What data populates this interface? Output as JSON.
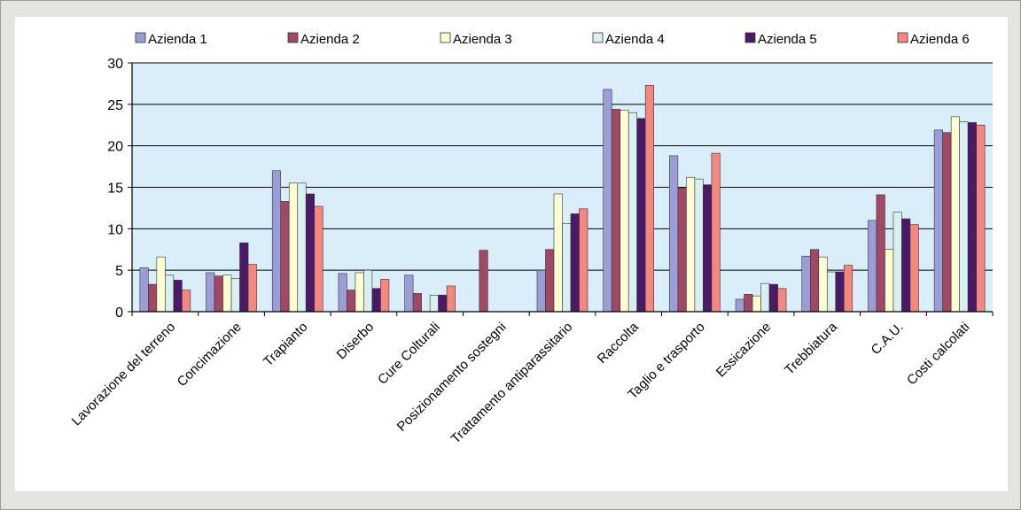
{
  "chart_data": {
    "type": "bar",
    "categories": [
      "Lavorazione del terreno",
      "Concimazione",
      "Trapianto",
      "Diserbo",
      "Cure Colturali",
      "Posizionamento sostegni",
      "Trattamento antiparassitario",
      "Raccolta",
      "Taglio e trasporto",
      "Essicazione",
      "Trebbiatura",
      "C.A.U.",
      "Costi calcolati"
    ],
    "series": [
      {
        "name": "Azienda 1",
        "color": "#9b9ed6",
        "values": [
          5.3,
          4.7,
          17.0,
          4.6,
          4.4,
          0,
          5.0,
          26.8,
          18.8,
          1.5,
          6.7,
          11.0,
          21.9
        ]
      },
      {
        "name": "Azienda 2",
        "color": "#a14866",
        "values": [
          3.3,
          4.3,
          13.3,
          2.6,
          2.2,
          7.4,
          7.5,
          24.4,
          14.9,
          2.1,
          7.5,
          14.1,
          21.6
        ]
      },
      {
        "name": "Azienda 3",
        "color": "#fefed3",
        "values": [
          6.6,
          4.4,
          15.5,
          4.7,
          0,
          0,
          14.2,
          24.3,
          16.2,
          1.9,
          6.6,
          7.5,
          23.5
        ]
      },
      {
        "name": "Azienda 4",
        "color": "#d8f0f0",
        "values": [
          4.4,
          4.0,
          15.5,
          5.0,
          2.0,
          0,
          10.6,
          24.0,
          16.0,
          3.4,
          4.8,
          12.0,
          22.9
        ]
      },
      {
        "name": "Azienda 5",
        "color": "#4a1a66",
        "values": [
          3.8,
          8.3,
          14.2,
          2.8,
          2.0,
          0,
          11.8,
          23.3,
          15.3,
          3.3,
          4.8,
          11.2,
          22.8
        ]
      },
      {
        "name": "Azienda 6",
        "color": "#f4877f",
        "values": [
          2.6,
          5.7,
          12.7,
          3.9,
          3.1,
          0,
          12.4,
          27.3,
          19.1,
          2.8,
          5.6,
          10.5,
          22.5
        ]
      }
    ],
    "ylim": [
      0,
      30
    ],
    "yticks": [
      0,
      5,
      10,
      15,
      20,
      25,
      30
    ],
    "grid": true,
    "plot_background": "#d9eef8",
    "legend_position": "top"
  }
}
